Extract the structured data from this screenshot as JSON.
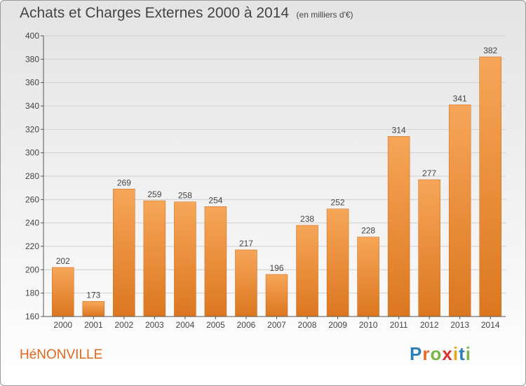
{
  "title": "Achats et Charges Externes 2000 à 2014",
  "unit_note": "(en milliers d'€)",
  "commune": "HéNONVILLE",
  "logo": {
    "letters": [
      "P",
      "r",
      "o",
      "x",
      "i",
      "t",
      "i"
    ],
    "colors": [
      "#2c7fb8",
      "#e8682a",
      "#7ab648",
      "#d9342b",
      "#e8a317",
      "#2c7fb8",
      "#7ab648"
    ]
  },
  "colors": {
    "bar_light": "#f6a658",
    "bar_dark": "#dc7720",
    "axis": "#555555",
    "grid": "#d0d0d0"
  },
  "chart_data": {
    "type": "bar",
    "categories": [
      "2000",
      "2001",
      "2002",
      "2003",
      "2004",
      "2005",
      "2006",
      "2007",
      "2008",
      "2009",
      "2010",
      "2011",
      "2012",
      "2013",
      "2014"
    ],
    "values": [
      202,
      173,
      269,
      259,
      258,
      254,
      217,
      196,
      238,
      252,
      228,
      314,
      277,
      341,
      382
    ],
    "ylim": [
      160,
      400
    ],
    "yticks": [
      160,
      180,
      200,
      220,
      240,
      260,
      280,
      300,
      320,
      340,
      360,
      380,
      400
    ],
    "grid": true,
    "data_labels": true
  }
}
